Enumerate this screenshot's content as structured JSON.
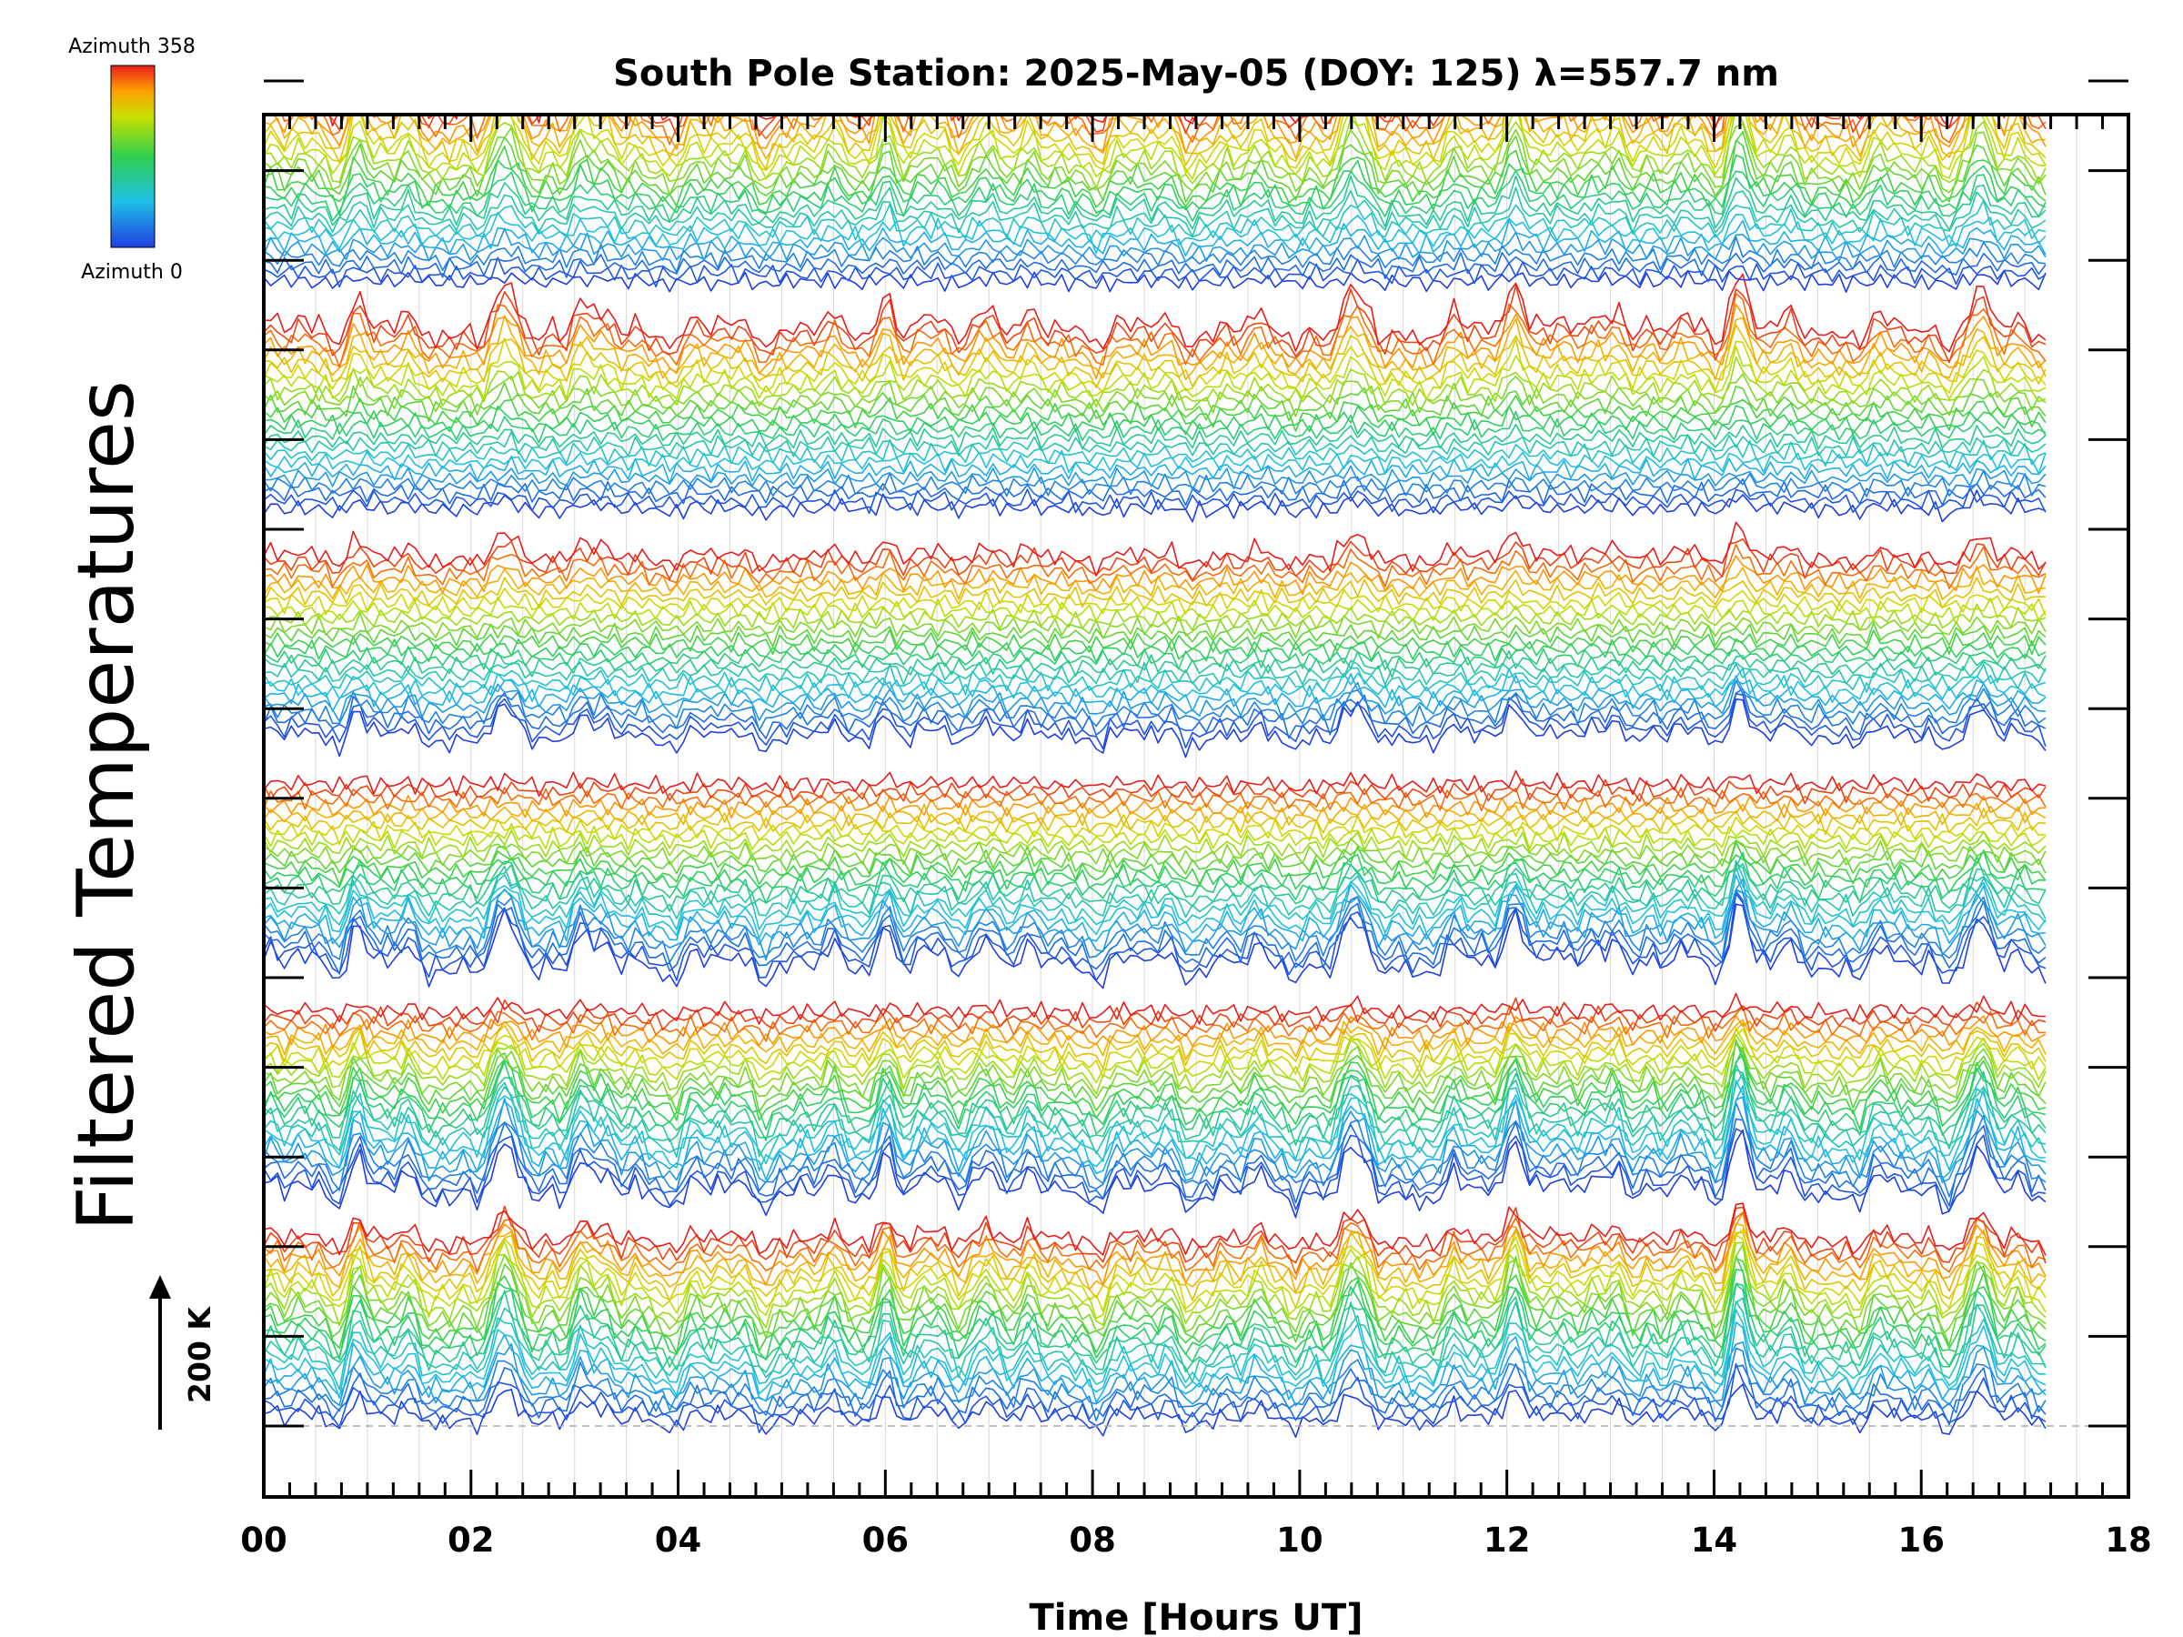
{
  "chart_data": {
    "type": "line",
    "title": "South Pole Station: 2025-May-05 (DOY: 125) λ=557.7 nm",
    "xlabel": "Time [Hours UT]",
    "ylabel": "Filtered Temperatures",
    "xlim": [
      0,
      18
    ],
    "x_data_range": [
      0,
      17.2
    ],
    "x_tick_labels": [
      "00",
      "02",
      "04",
      "06",
      "08",
      "10",
      "12",
      "14",
      "16",
      "18"
    ],
    "x_tick_values": [
      0,
      2,
      4,
      6,
      8,
      10,
      12,
      14,
      16,
      18
    ],
    "colorbar": {
      "top_label": "Azimuth 358",
      "bottom_label": "Azimuth 0",
      "min_azimuth": 0,
      "max_azimuth": 358,
      "colormap": "rainbow"
    },
    "scale_bar": {
      "label": "200 K",
      "kelvin": 200
    },
    "series_summary": {
      "stacks": 6,
      "traces_per_stack": 24,
      "note": "Stacked azimuth-filtered temperature traces, each offset vertically; color encodes azimuth 0 (blue) to 358 (red)"
    },
    "prominent_peaks_hours": [
      0.9,
      2.35,
      3.05,
      6.0,
      7.0,
      10.5,
      12.1,
      13.05,
      14.25,
      16.55
    ]
  },
  "colors": {
    "axis": "#000000",
    "grid": "#d9d9d9",
    "baseline": "#aaaaaa",
    "azimuth_low": "#1f3fe0",
    "azimuth_high": "#e81c1c"
  }
}
